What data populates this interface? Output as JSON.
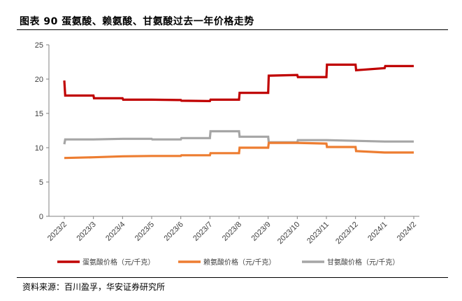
{
  "title": "图表 90 蛋氨酸、赖氨酸、甘氨酸过去一年价格走势",
  "source": "资料来源：百川盈孚，华安证券研究所",
  "chart_data": {
    "type": "line",
    "title": "",
    "xlabel": "",
    "ylabel": "",
    "ylim": [
      0,
      25
    ],
    "yticks": [
      "0",
      "5",
      "10",
      "15",
      "20",
      "25"
    ],
    "grid": false,
    "legend_position": "bottom",
    "x": [
      "2023/2",
      "2023/3",
      "2023/4",
      "2023/5",
      "2023/6",
      "2023/7",
      "2023/8",
      "2023/9",
      "2023/10",
      "2023/11",
      "2023/12",
      "2024/1",
      "2024/2"
    ],
    "series": [
      {
        "name": "蛋氨酸价格（元/千克）",
        "color": "#c00000",
        "points": [
          [
            0,
            19.8
          ],
          [
            0.03,
            17.6
          ],
          [
            1,
            17.6
          ],
          [
            1.02,
            17.2
          ],
          [
            2,
            17.2
          ],
          [
            2.02,
            17.0
          ],
          [
            3,
            17.0
          ],
          [
            4,
            16.95
          ],
          [
            4.02,
            16.85
          ],
          [
            5,
            16.8
          ],
          [
            5.02,
            17.0
          ],
          [
            6,
            17.0
          ],
          [
            6.02,
            18.0
          ],
          [
            7,
            18.0
          ],
          [
            7.02,
            20.5
          ],
          [
            8,
            20.6
          ],
          [
            8.02,
            20.3
          ],
          [
            9,
            20.3
          ],
          [
            9.02,
            22.1
          ],
          [
            10,
            22.1
          ],
          [
            10.02,
            21.3
          ],
          [
            11,
            21.6
          ],
          [
            11.02,
            21.9
          ],
          [
            12,
            21.9
          ]
        ]
      },
      {
        "name": "赖氨酸价格（元/千克）",
        "color": "#ed7d31",
        "points": [
          [
            0,
            8.5
          ],
          [
            1,
            8.6
          ],
          [
            2,
            8.75
          ],
          [
            3,
            8.8
          ],
          [
            4,
            8.8
          ],
          [
            4.02,
            8.9
          ],
          [
            5,
            8.9
          ],
          [
            5.02,
            9.2
          ],
          [
            6,
            9.2
          ],
          [
            6.02,
            10.0
          ],
          [
            7,
            10.0
          ],
          [
            7.02,
            10.7
          ],
          [
            8,
            10.7
          ],
          [
            9,
            10.6
          ],
          [
            9.02,
            10.1
          ],
          [
            10,
            10.1
          ],
          [
            10.02,
            9.5
          ],
          [
            11,
            9.3
          ],
          [
            12,
            9.3
          ]
        ]
      },
      {
        "name": "甘氨酸价格（元/千克）",
        "color": "#a6a6a6",
        "points": [
          [
            0,
            10.5
          ],
          [
            0.03,
            11.2
          ],
          [
            1,
            11.2
          ],
          [
            2,
            11.3
          ],
          [
            3,
            11.3
          ],
          [
            3.02,
            11.2
          ],
          [
            4,
            11.2
          ],
          [
            4.02,
            11.4
          ],
          [
            5,
            11.4
          ],
          [
            5.02,
            12.4
          ],
          [
            6,
            12.4
          ],
          [
            6.02,
            11.6
          ],
          [
            7,
            11.6
          ],
          [
            7.02,
            10.8
          ],
          [
            8,
            10.8
          ],
          [
            8.02,
            11.1
          ],
          [
            9,
            11.1
          ],
          [
            10,
            11.0
          ],
          [
            11,
            10.9
          ],
          [
            12,
            10.9
          ]
        ]
      }
    ]
  }
}
